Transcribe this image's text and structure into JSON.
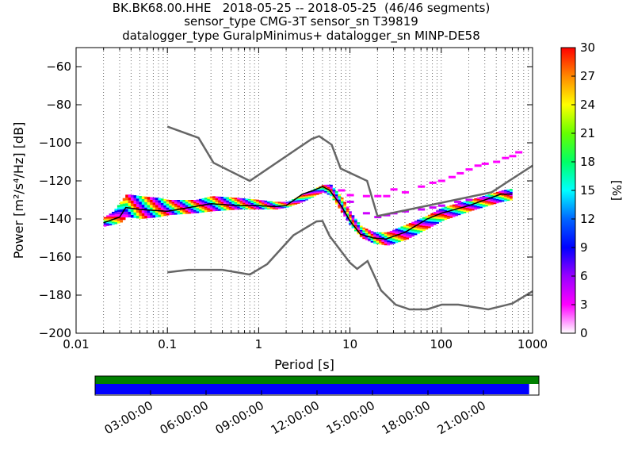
{
  "title_lines": [
    "BK.BK68.00.HHE   2018-05-25 -- 2018-05-25  (46/46 segments)",
    "sensor_type CMG-3T sensor_sn T39819",
    "datalogger_type GuralpMinimus+ datalogger_sn MINP-DE58"
  ],
  "chart_data": {
    "type": "heatmap",
    "title": "BK.BK68.00.HHE   2018-05-25 -- 2018-05-25  (46/46 segments)",
    "subtitle": "sensor_type CMG-3T sensor_sn T39819 / datalogger_type GuralpMinimus+ datalogger_sn MINP-DE58",
    "xlabel": "Period [s]",
    "ylabel": "Power [m²/s⁴/Hz] [dB]",
    "xscale": "log",
    "xlim": [
      0.01,
      1000
    ],
    "ylim": [
      -200,
      -50
    ],
    "grid": "dotted vertical lines at log subdivisions",
    "x_ticks": [
      0.01,
      0.1,
      1,
      10,
      100,
      1000
    ],
    "x_tick_labels": [
      "0.01",
      "0.1",
      "1",
      "10",
      "100",
      "1000"
    ],
    "y_ticks": [
      -200,
      -180,
      -160,
      -140,
      -120,
      -100,
      -80,
      -60
    ],
    "y_tick_labels": [
      "−200",
      "−180",
      "−160",
      "−140",
      "−120",
      "−100",
      "−80",
      "−60"
    ],
    "colorbar": {
      "label": "[%]",
      "range": [
        0,
        30
      ],
      "ticks": [
        0,
        3,
        6,
        9,
        12,
        15,
        18,
        21,
        24,
        27,
        30
      ],
      "tick_labels": [
        "0",
        "3",
        "6",
        "9",
        "12",
        "15",
        "18",
        "21",
        "24",
        "27",
        "30"
      ],
      "colormap": "pqlx"
    },
    "series": [
      {
        "name": "high noise model",
        "color": "#666666",
        "points": [
          [
            0.1,
            -91.5
          ],
          [
            0.22,
            -97.4
          ],
          [
            0.32,
            -110.5
          ],
          [
            0.8,
            -120
          ],
          [
            3.8,
            -98
          ],
          [
            4.6,
            -96.5
          ],
          [
            6.3,
            -101
          ],
          [
            7.9,
            -113.5
          ],
          [
            15.4,
            -120
          ],
          [
            20,
            -138.5
          ],
          [
            354.8,
            -126
          ],
          [
            1000,
            -112
          ]
        ]
      },
      {
        "name": "low noise model",
        "color": "#666666",
        "points": [
          [
            0.1,
            -168
          ],
          [
            0.17,
            -166.7
          ],
          [
            0.4,
            -166.7
          ],
          [
            0.8,
            -169.2
          ],
          [
            1.24,
            -163.7
          ],
          [
            2.4,
            -148.6
          ],
          [
            4.3,
            -141.3
          ],
          [
            5,
            -141.1
          ],
          [
            6,
            -149
          ],
          [
            10,
            -163
          ],
          [
            12,
            -166.2
          ],
          [
            15.6,
            -162.1
          ],
          [
            21.9,
            -177.5
          ],
          [
            31.6,
            -185
          ],
          [
            45,
            -187.5
          ],
          [
            70,
            -187.5
          ],
          [
            101,
            -185
          ],
          [
            154,
            -185
          ],
          [
            328,
            -187.5
          ],
          [
            600,
            -184.4
          ],
          [
            1000,
            -178
          ]
        ]
      },
      {
        "name": "mode",
        "color": "#000000",
        "points": [
          [
            0.02,
            -142
          ],
          [
            0.03,
            -139
          ],
          [
            0.035,
            -134
          ],
          [
            0.05,
            -135
          ],
          [
            0.1,
            -136
          ],
          [
            0.3,
            -132
          ],
          [
            0.6,
            -133
          ],
          [
            1,
            -133
          ],
          [
            1.5,
            -133.5
          ],
          [
            2,
            -133
          ],
          [
            3,
            -127
          ],
          [
            4,
            -125
          ],
          [
            5,
            -123
          ],
          [
            6,
            -125
          ],
          [
            8,
            -133
          ],
          [
            10,
            -141
          ],
          [
            13,
            -148
          ],
          [
            18,
            -150
          ],
          [
            25,
            -150.5
          ],
          [
            40,
            -147
          ],
          [
            70,
            -140
          ],
          [
            100,
            -137
          ],
          [
            200,
            -133
          ],
          [
            450,
            -127
          ],
          [
            600,
            -127
          ]
        ]
      }
    ],
    "density_band": [
      [
        0.02,
        -144,
        -139
      ],
      [
        0.025,
        -143,
        -136
      ],
      [
        0.03,
        -142,
        -131
      ],
      [
        0.035,
        -139,
        -127
      ],
      [
        0.05,
        -140,
        -128
      ],
      [
        0.08,
        -139,
        -129
      ],
      [
        0.1,
        -138,
        -130
      ],
      [
        0.2,
        -137,
        -130
      ],
      [
        0.3,
        -136,
        -128
      ],
      [
        0.6,
        -135,
        -129
      ],
      [
        1,
        -135,
        -130
      ],
      [
        1.5,
        -135,
        -131
      ],
      [
        2,
        -134,
        -131
      ],
      [
        3,
        -131,
        -127
      ],
      [
        4,
        -128,
        -124
      ],
      [
        5,
        -126,
        -122
      ],
      [
        6,
        -128,
        -122
      ],
      [
        8,
        -137,
        -129
      ],
      [
        10,
        -144,
        -137
      ],
      [
        13,
        -150,
        -144
      ],
      [
        18,
        -153,
        -147
      ],
      [
        25,
        -154,
        -147
      ],
      [
        40,
        -151,
        -143
      ],
      [
        70,
        -145,
        -138
      ],
      [
        100,
        -141,
        -134
      ],
      [
        200,
        -136,
        -130
      ],
      [
        450,
        -131,
        -125
      ],
      [
        600,
        -130,
        -124
      ]
    ],
    "scatter_groups": [
      {
        "color": "#ff00ff",
        "points": [
          [
            8,
            -125
          ],
          [
            10,
            -127.5
          ],
          [
            15,
            -128
          ],
          [
            20,
            -128
          ],
          [
            25,
            -128
          ],
          [
            30,
            -124.5
          ],
          [
            40,
            -126
          ],
          [
            60,
            -123
          ],
          [
            80,
            -121
          ],
          [
            100,
            -120
          ],
          [
            130,
            -118
          ],
          [
            160,
            -116
          ],
          [
            200,
            -114
          ],
          [
            250,
            -112
          ],
          [
            300,
            -111
          ],
          [
            400,
            -110
          ],
          [
            500,
            -108
          ],
          [
            600,
            -107
          ],
          [
            700,
            -105
          ]
        ]
      },
      {
        "color": "#cc00ff",
        "points": [
          [
            10,
            -131
          ],
          [
            15,
            -137
          ],
          [
            20,
            -139
          ],
          [
            25,
            -138
          ],
          [
            30,
            -137
          ],
          [
            40,
            -136
          ],
          [
            60,
            -135
          ],
          [
            80,
            -134
          ],
          [
            100,
            -133
          ],
          [
            150,
            -131
          ],
          [
            200,
            -130
          ],
          [
            300,
            -129
          ]
        ]
      }
    ],
    "time_bar": {
      "tick_labels": [
        "03:00:00",
        "06:00:00",
        "09:00:00",
        "12:00:00",
        "15:00:00",
        "18:00:00",
        "21:00:00"
      ],
      "coverage_rows": [
        {
          "color": "#008000",
          "coverage": 1.0
        },
        {
          "color": "#0000ff",
          "coverage": 0.978
        }
      ]
    }
  }
}
